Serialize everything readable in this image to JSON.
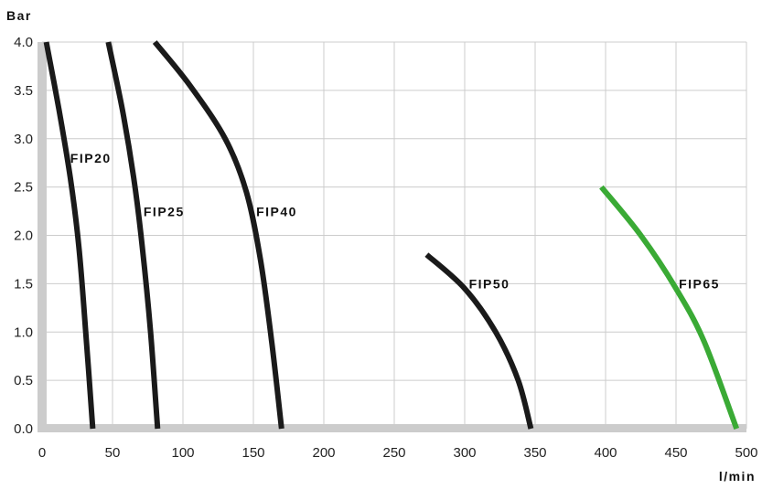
{
  "chart_data": {
    "type": "line",
    "xlabel": "l/min",
    "ylabel": "Bar",
    "xlim": [
      0,
      500
    ],
    "ylim": [
      0,
      4.0
    ],
    "x_ticks": [
      "0",
      "50",
      "100",
      "150",
      "200",
      "250",
      "300",
      "350",
      "400",
      "450",
      "500"
    ],
    "y_ticks": [
      "0.0",
      "0.5",
      "1.0",
      "1.5",
      "2.0",
      "2.5",
      "3.0",
      "3.5",
      "4.0"
    ],
    "grid": true,
    "colors": {
      "axis": "#cccccc",
      "grid": "#cccccc",
      "black_curve": "#1a1a1a",
      "green_curve": "#3aaa35"
    },
    "series": [
      {
        "name": "FIP20",
        "color": "#1a1a1a",
        "points": [
          [
            3,
            4.0
          ],
          [
            12,
            3.3
          ],
          [
            20,
            2.6
          ],
          [
            26,
            1.9
          ],
          [
            31,
            1.0
          ],
          [
            36,
            0.0
          ]
        ]
      },
      {
        "name": "FIP25",
        "color": "#1a1a1a",
        "points": [
          [
            47,
            4.0
          ],
          [
            57,
            3.3
          ],
          [
            65,
            2.6
          ],
          [
            71,
            1.9
          ],
          [
            77,
            1.0
          ],
          [
            82,
            0.0
          ]
        ]
      },
      {
        "name": "FIP40",
        "color": "#1a1a1a",
        "points": [
          [
            80,
            4.0
          ],
          [
            105,
            3.55
          ],
          [
            130,
            3.0
          ],
          [
            145,
            2.45
          ],
          [
            155,
            1.75
          ],
          [
            163,
            0.9
          ],
          [
            170,
            0.0
          ]
        ]
      },
      {
        "name": "FIP50",
        "color": "#1a1a1a",
        "points": [
          [
            273,
            1.8
          ],
          [
            300,
            1.45
          ],
          [
            322,
            1.0
          ],
          [
            338,
            0.5
          ],
          [
            347,
            0.0
          ]
        ]
      },
      {
        "name": "FIP65",
        "color": "#3aaa35",
        "points": [
          [
            397,
            2.5
          ],
          [
            425,
            2.0
          ],
          [
            450,
            1.45
          ],
          [
            470,
            0.9
          ],
          [
            493,
            0.0
          ]
        ]
      }
    ],
    "labels": [
      {
        "text": "FIP20",
        "x": 20,
        "y": 2.75
      },
      {
        "text": "FIP25",
        "x": 72,
        "y": 2.2
      },
      {
        "text": "FIP40",
        "x": 152,
        "y": 2.2
      },
      {
        "text": "FIP50",
        "x": 303,
        "y": 1.45
      },
      {
        "text": "FIP65",
        "x": 452,
        "y": 1.45
      }
    ]
  }
}
